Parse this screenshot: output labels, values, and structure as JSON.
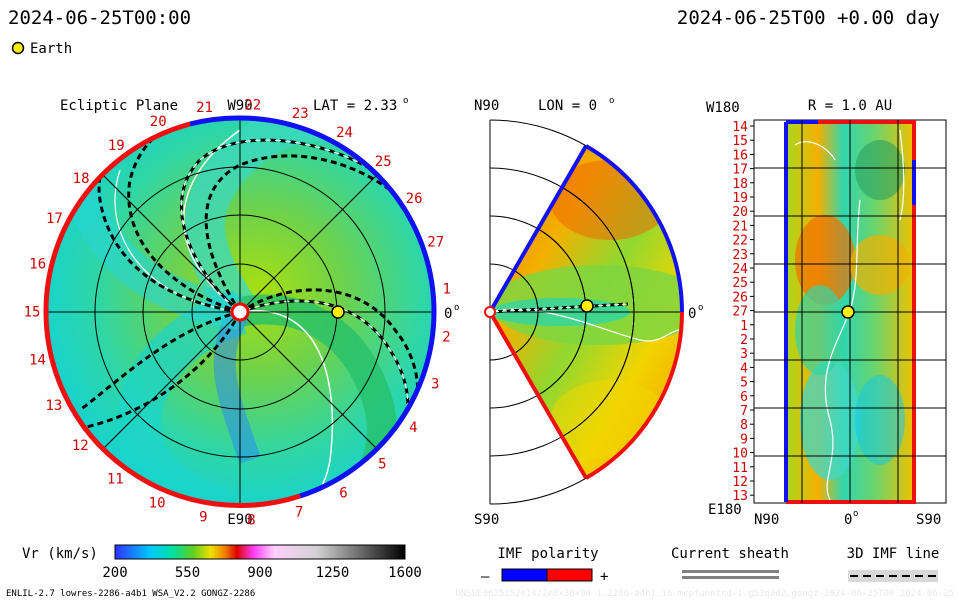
{
  "header": {
    "left_time": "2024-06-25T00:00",
    "right_time": "2024-06-25T00 +0.00 day",
    "legend_earth": "Earth"
  },
  "ecliptic": {
    "title": "Ecliptic Plane",
    "top_label": "W90",
    "bottom_label": "E90",
    "right_label": "0",
    "right_label_sup": "o",
    "lat_label": "LAT = 2.33",
    "lat_sup": "o",
    "carrington_labels": [
      "1",
      "2",
      "3",
      "4",
      "5",
      "6",
      "7",
      "8",
      "9",
      "10",
      "11",
      "12",
      "13",
      "14",
      "15",
      "16",
      "17",
      "18",
      "19",
      "20",
      "21",
      "22",
      "23",
      "24",
      "25",
      "26",
      "27"
    ]
  },
  "meridional": {
    "top_label": "N90",
    "bottom_label": "S90",
    "lon_label": "LON = 0",
    "lon_sup": "o",
    "right_label": "0",
    "right_sup": "o"
  },
  "radial": {
    "title": "R = 1.0 AU",
    "corner_top": "W180",
    "corner_bottom": "E180",
    "bottom_left": "N90",
    "bottom_mid": "0",
    "bottom_mid_sup": "o",
    "bottom_right": "S90",
    "rows": [
      "14",
      "15",
      "16",
      "17",
      "18",
      "19",
      "20",
      "21",
      "22",
      "23",
      "24",
      "25",
      "26",
      "27",
      "1",
      "2",
      "3",
      "4",
      "5",
      "6",
      "7",
      "8",
      "9",
      "10",
      "11",
      "12",
      "13"
    ]
  },
  "colorbar": {
    "label": "Vr (km/s)",
    "ticks": [
      "200",
      "550",
      "900",
      "1250",
      "1600"
    ]
  },
  "imf": {
    "title": "IMF polarity",
    "minus": "–",
    "plus": "+",
    "minus_color": "#0000ff",
    "plus_color": "#ff0000"
  },
  "current_sheath": {
    "title": "Current sheath",
    "color": "#808080"
  },
  "imf_line": {
    "title": "3D IMF line"
  },
  "footer": {
    "left": "ENLIL-2.7 lowres-2286-a4b1 WSA_V2.2 GONGZ-2286",
    "right": "UNSUE0625152e14/2e8×30×90 1.2286-a4b1.16-mcpfunntcd-1.g53q0d2.gongz-2024-06-25T00 2024-06-25"
  },
  "chart_data": {
    "type": "heatmap",
    "title": "",
    "colorbar": {
      "variable": "Vr",
      "unit": "km/s",
      "min": 200,
      "max": 1600,
      "ticks": [
        200,
        550,
        900,
        1250,
        1600
      ]
    },
    "earth": {
      "r_au": 1.0,
      "lon_deg": 0,
      "lat_deg": 2.33
    },
    "colors": {
      "low": "#00e6d2",
      "mid": "#7ed321",
      "high": "#f0a000",
      "peak": "#e64a00",
      "earth": "#ffee00"
    }
  }
}
